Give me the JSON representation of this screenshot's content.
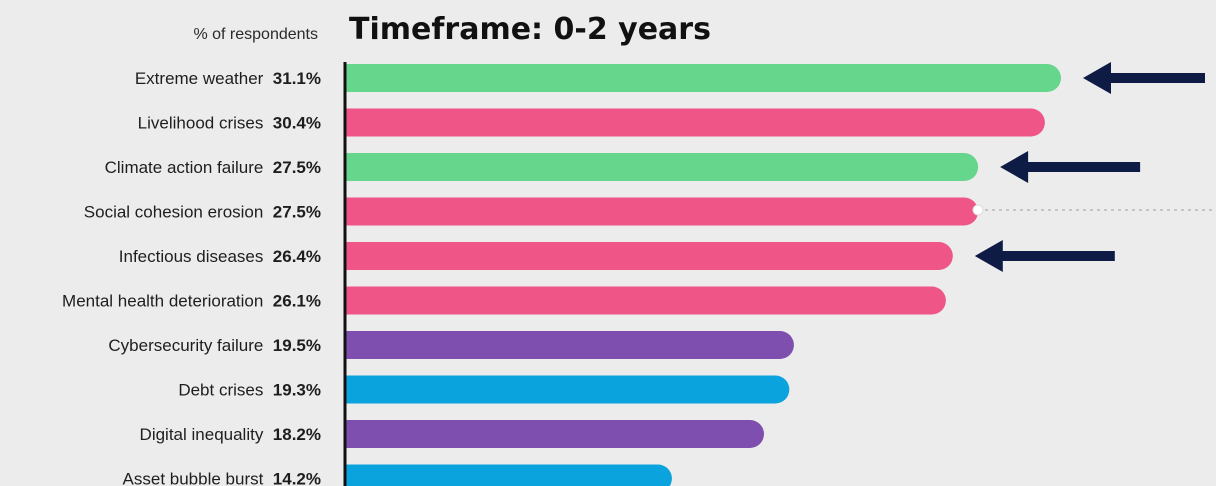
{
  "chart_data": {
    "type": "bar",
    "orientation": "horizontal",
    "title": "Timeframe: 0-2 years",
    "value_label": "% of respondents",
    "xlim": [
      0,
      31.1
    ],
    "categories": [
      "Extreme weather",
      "Livelihood crises",
      "Climate action failure",
      "Social cohesion erosion",
      "Infectious diseases",
      "Mental health deterioration",
      "Cybersecurity failure",
      "Debt crises",
      "Digital inequality",
      "Asset bubble burst"
    ],
    "values": [
      31.1,
      30.4,
      27.5,
      27.5,
      26.4,
      26.1,
      19.5,
      19.3,
      18.2,
      14.2
    ],
    "value_labels": [
      "31.1%",
      "30.4%",
      "27.5%",
      "27.5%",
      "26.4%",
      "26.1%",
      "19.5%",
      "19.3%",
      "18.2%",
      "14.2%"
    ],
    "bar_colors": [
      "#66d68c",
      "#ef5587",
      "#66d68c",
      "#ef5587",
      "#ef5587",
      "#ef5587",
      "#7f4fb0",
      "#0aa3dd",
      "#7f4fb0",
      "#0aa3dd"
    ],
    "highlighted_categories": [
      "Extreme weather",
      "Climate action failure",
      "Infectious diseases"
    ],
    "grid": false,
    "legend": "none"
  },
  "annotations": {
    "arrow_color": "#0d1b45",
    "arrow_icon": "arrow-left-icon"
  },
  "colors": {
    "background": "#ececec",
    "axis": "#111111"
  }
}
